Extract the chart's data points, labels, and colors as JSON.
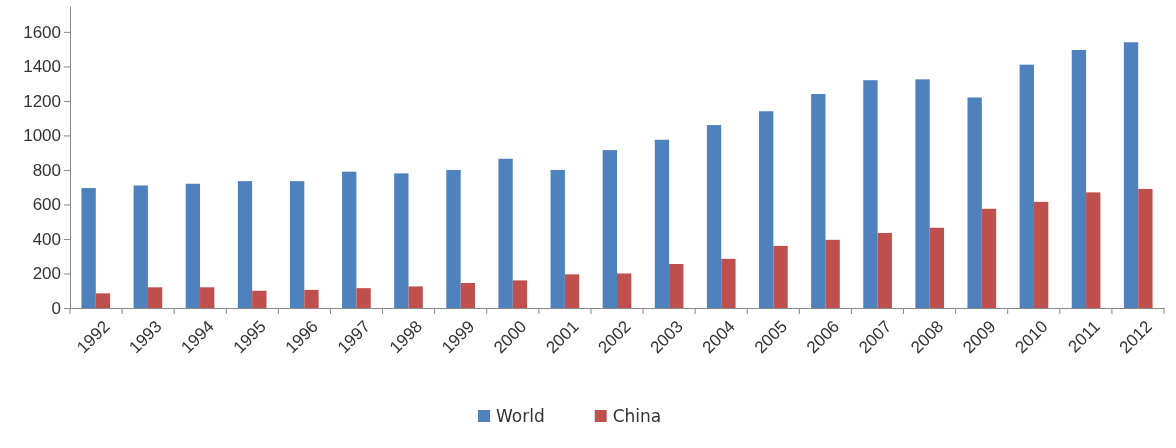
{
  "chart_data": {
    "type": "bar",
    "categories": [
      "1992",
      "1993",
      "1994",
      "1995",
      "1996",
      "1997",
      "1998",
      "1999",
      "2000",
      "2001",
      "2002",
      "2003",
      "2004",
      "2005",
      "2006",
      "2007",
      "2008",
      "2009",
      "2010",
      "2011",
      "2012"
    ],
    "series": [
      {
        "name": "World",
        "color": "#4f81bd",
        "values": [
          695,
          710,
          720,
          735,
          735,
          790,
          780,
          800,
          865,
          800,
          915,
          975,
          1060,
          1140,
          1240,
          1320,
          1325,
          1220,
          1410,
          1495,
          1540
        ]
      },
      {
        "name": "China",
        "color": "#c0504d",
        "values": [
          85,
          120,
          120,
          100,
          105,
          115,
          125,
          145,
          160,
          195,
          200,
          255,
          285,
          360,
          395,
          435,
          465,
          575,
          615,
          670,
          690
        ]
      }
    ],
    "ylim": [
      0,
      1750
    ],
    "yticks": [
      0,
      200,
      400,
      600,
      800,
      1000,
      1200,
      1400,
      1600
    ],
    "grid": false,
    "legend": "bottom"
  }
}
